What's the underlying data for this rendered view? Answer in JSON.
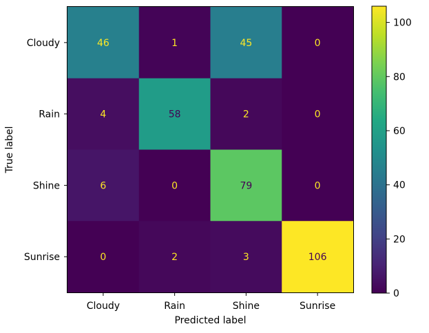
{
  "chart_data": {
    "type": "heatmap",
    "title": "",
    "xlabel": "Predicted label",
    "ylabel": "True label",
    "x_categories": [
      "Cloudy",
      "Rain",
      "Shine",
      "Sunrise"
    ],
    "y_categories": [
      "Cloudy",
      "Rain",
      "Shine",
      "Sunrise"
    ],
    "values": [
      [
        46,
        1,
        45,
        0
      ],
      [
        4,
        58,
        2,
        0
      ],
      [
        6,
        0,
        79,
        0
      ],
      [
        0,
        2,
        3,
        106
      ]
    ],
    "colormap": "viridis",
    "vmin": 0,
    "vmax": 106,
    "colorbar_ticks": [
      0,
      20,
      40,
      60,
      80,
      100
    ],
    "cell_text_colors": {
      "on_dark": "#fde725",
      "on_light": "#440154"
    },
    "grid": false
  }
}
